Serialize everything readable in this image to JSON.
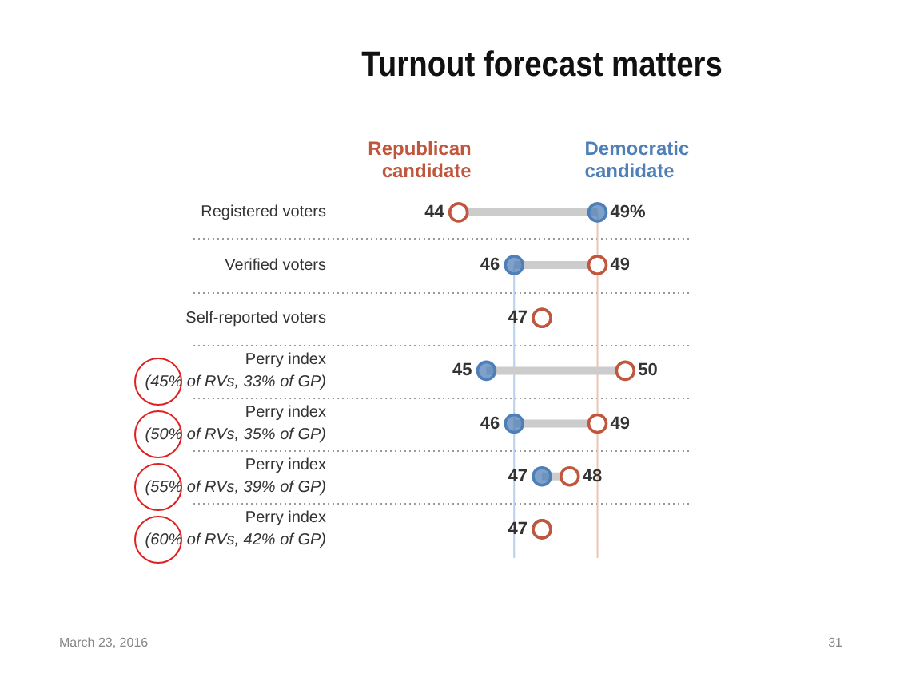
{
  "chart_data": {
    "type": "scatter",
    "orientation": "horizontal",
    "title": "Turnout forecast matters",
    "categories": [
      "Registered voters",
      "Verified voters",
      "Self-reported voters",
      "Perry index\n(45% of RVs, 33% of GP)",
      "Perry index\n(50% of RVs, 35% of GP)",
      "Perry index\n(55% of RVs, 39% of GP)",
      "Perry index\n(60% of RVs, 42% of GP)"
    ],
    "series": [
      {
        "name": "Republican\ncandidate",
        "color": "#c0563b",
        "values": [
          44,
          49,
          47,
          50,
          49,
          48,
          47
        ],
        "value_labels": [
          "44",
          "49",
          null,
          "50",
          "49",
          "48",
          null
        ]
      },
      {
        "name": "Democratic\ncandidate",
        "color": "#4f7fb8",
        "values": [
          49,
          46,
          47,
          45,
          46,
          47,
          47
        ],
        "value_labels": [
          "49%",
          "46",
          "47",
          "45",
          "46",
          "47",
          "47"
        ]
      }
    ],
    "marker": "circle",
    "ref_lines": [
      {
        "axis": "x",
        "value": 46,
        "color": "#b9d0ea"
      },
      {
        "axis": "x",
        "value": 49,
        "color": "#efc3b3"
      }
    ],
    "annotations": [
      "March 23, 2016",
      "31"
    ]
  }
}
